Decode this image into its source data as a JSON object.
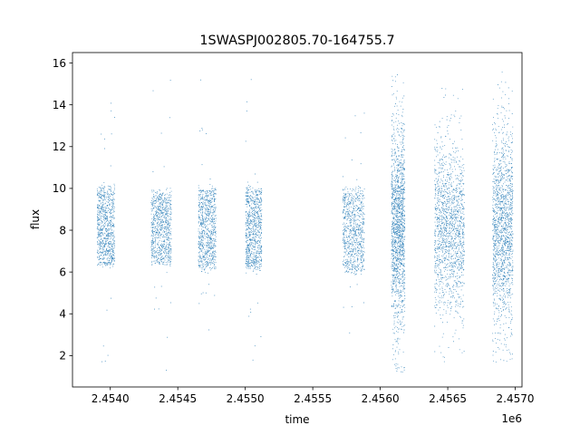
{
  "chart_data": {
    "type": "scatter",
    "title": "1SWASPJ002805.70-164755.7",
    "xlabel": "time",
    "ylabel": "flux",
    "x_offset_label": "1e6",
    "xlim": [
      2.45372,
      2.45705
    ],
    "ylim": [
      0.5,
      16.5
    ],
    "x_ticks": [
      2.454,
      2.4545,
      2.455,
      2.4555,
      2.456,
      2.4565,
      2.457
    ],
    "x_tick_labels": [
      "2.4540",
      "2.4545",
      "2.4550",
      "2.4555",
      "2.4560",
      "2.4565",
      "2.4570"
    ],
    "y_ticks": [
      2,
      4,
      6,
      8,
      10,
      12,
      14,
      16
    ],
    "y_tick_labels": [
      "2",
      "4",
      "6",
      "8",
      "10",
      "12",
      "14",
      "16"
    ],
    "grid": false,
    "legend": "none",
    "marker_color": "#1f77b4",
    "observing_seasons": [
      {
        "x_start": 2.4539,
        "x_end": 2.45403,
        "y_median": 8.2,
        "y_low": 6.4,
        "y_high": 10.0,
        "y_min": 1.3,
        "y_max": 14.6
      },
      {
        "x_start": 2.4543,
        "x_end": 2.45445,
        "y_median": 8.1,
        "y_low": 6.4,
        "y_high": 9.9,
        "y_min": 1.2,
        "y_max": 15.6
      },
      {
        "x_start": 2.45465,
        "x_end": 2.45478,
        "y_median": 8.1,
        "y_low": 6.2,
        "y_high": 10.0,
        "y_min": 3.2,
        "y_max": 15.6
      },
      {
        "x_start": 2.455,
        "x_end": 2.45512,
        "y_median": 8.1,
        "y_low": 6.1,
        "y_high": 9.9,
        "y_min": 1.4,
        "y_max": 15.3
      },
      {
        "x_start": 2.45572,
        "x_end": 2.45588,
        "y_median": 8.0,
        "y_low": 6.2,
        "y_high": 10.1,
        "y_min": 2.4,
        "y_max": 14.0
      },
      {
        "x_start": 2.45608,
        "x_end": 2.45618,
        "y_median": 8.2,
        "y_low": 3.5,
        "y_high": 12.5,
        "y_min": 1.2,
        "y_max": 15.5
      },
      {
        "x_start": 2.4564,
        "x_end": 2.45662,
        "y_median": 8.2,
        "y_low": 4.5,
        "y_high": 12.0,
        "y_min": 1.1,
        "y_max": 15.5
      },
      {
        "x_start": 2.45683,
        "x_end": 2.45698,
        "y_median": 8.2,
        "y_low": 4.0,
        "y_high": 12.5,
        "y_min": 1.6,
        "y_max": 15.6
      }
    ]
  }
}
